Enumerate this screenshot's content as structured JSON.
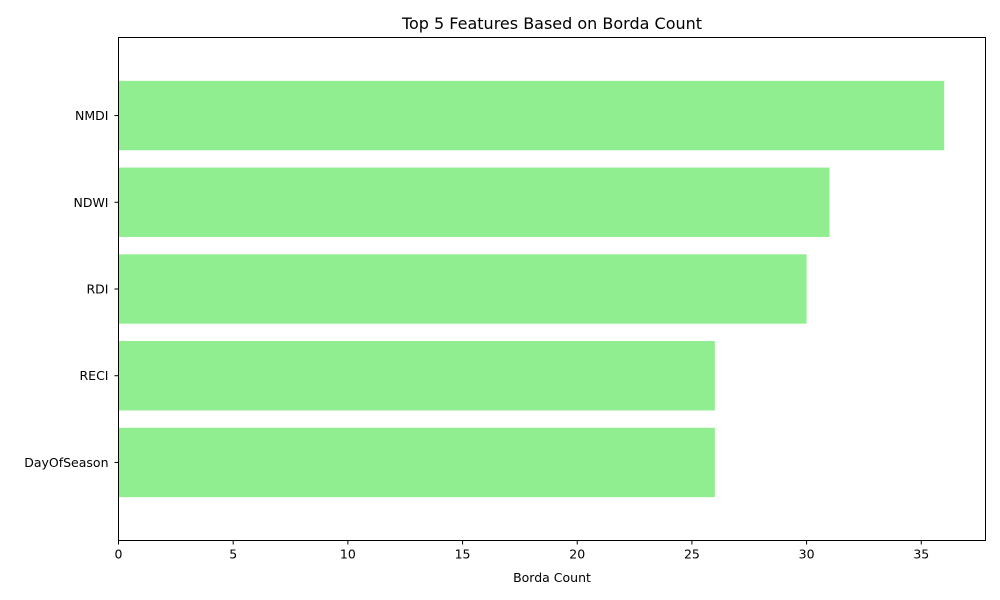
{
  "chart_data": {
    "type": "bar",
    "orientation": "horizontal",
    "title": "Top 5 Features Based on Borda Count",
    "xlabel": "Borda Count",
    "ylabel": "",
    "categories": [
      "NMDI",
      "NDWI",
      "RDI",
      "RECI",
      "DayOfSeason"
    ],
    "values": [
      36,
      31,
      30,
      26,
      26
    ],
    "xlim": [
      0,
      37.8
    ],
    "xticks": [
      0,
      5,
      10,
      15,
      20,
      25,
      30,
      35
    ],
    "bar_color": "#90ee90",
    "grid": false,
    "legend": false
  }
}
